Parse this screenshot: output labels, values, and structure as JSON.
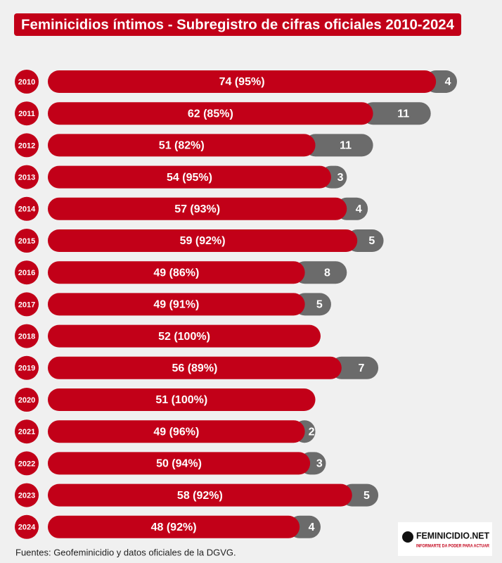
{
  "chart_data": {
    "type": "stacked-hbar",
    "title": "Feminicidios íntimos - Subregistro de cifras oficiales 2010-2024",
    "categories": [
      "2010",
      "2011",
      "2012",
      "2013",
      "2014",
      "2015",
      "2016",
      "2017",
      "2018",
      "2019",
      "2020",
      "2021",
      "2022",
      "2023",
      "2024"
    ],
    "series": [
      {
        "color": "#c20018",
        "values": [
          74,
          62,
          51,
          54,
          57,
          59,
          49,
          49,
          52,
          56,
          51,
          49,
          50,
          58,
          48
        ],
        "value_labels": [
          "74 (95%)",
          "62 (85%)",
          "51 (82%)",
          "54 (95%)",
          "57 (93%)",
          "59 (92%)",
          "49 (86%)",
          "49 (91%)",
          "52 (100%)",
          "56 (89%)",
          "51 (100%)",
          "49 (96%)",
          "50 (94%)",
          "58 (92%)",
          "48 (92%)"
        ]
      },
      {
        "color": "#6b6b6b",
        "values": [
          4,
          11,
          11,
          3,
          4,
          5,
          8,
          5,
          null,
          7,
          null,
          2,
          3,
          5,
          4
        ]
      }
    ],
    "source": "Fuentes: Geofeminicidio y datos oficiales de la DGVG."
  },
  "logo": {
    "name": "FEMINICIDIO.NET",
    "tagline": "INFORMARTE DA PODER PARA ACTUAR"
  }
}
